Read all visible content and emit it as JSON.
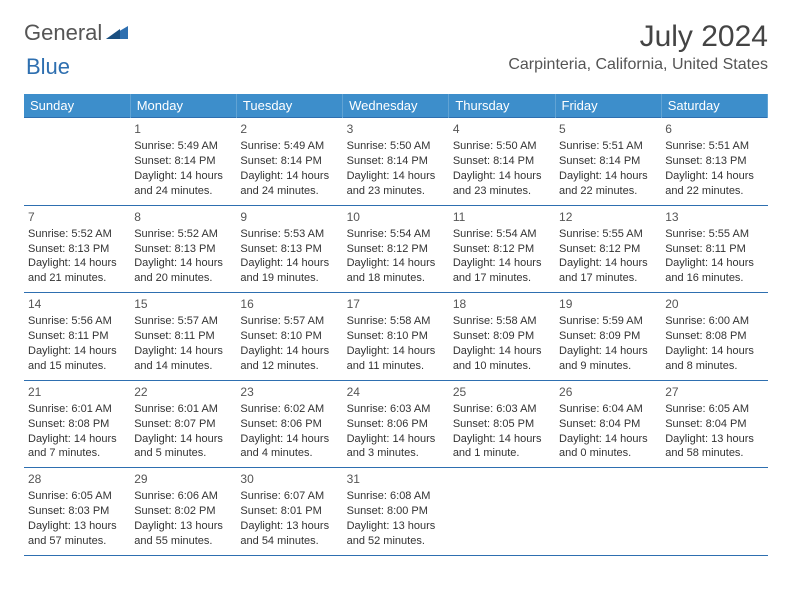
{
  "logo": {
    "general": "General",
    "blue": "Blue"
  },
  "title": "July 2024",
  "location": "Carpinteria, California, United States",
  "colors": {
    "header_bg": "#3d8ecb",
    "border": "#2e6fb0",
    "text": "#333333",
    "title_text": "#444444"
  },
  "weekdays": [
    "Sunday",
    "Monday",
    "Tuesday",
    "Wednesday",
    "Thursday",
    "Friday",
    "Saturday"
  ],
  "weeks": [
    [
      null,
      {
        "n": "1",
        "sunrise": "Sunrise: 5:49 AM",
        "sunset": "Sunset: 8:14 PM",
        "day1": "Daylight: 14 hours",
        "day2": "and 24 minutes."
      },
      {
        "n": "2",
        "sunrise": "Sunrise: 5:49 AM",
        "sunset": "Sunset: 8:14 PM",
        "day1": "Daylight: 14 hours",
        "day2": "and 24 minutes."
      },
      {
        "n": "3",
        "sunrise": "Sunrise: 5:50 AM",
        "sunset": "Sunset: 8:14 PM",
        "day1": "Daylight: 14 hours",
        "day2": "and 23 minutes."
      },
      {
        "n": "4",
        "sunrise": "Sunrise: 5:50 AM",
        "sunset": "Sunset: 8:14 PM",
        "day1": "Daylight: 14 hours",
        "day2": "and 23 minutes."
      },
      {
        "n": "5",
        "sunrise": "Sunrise: 5:51 AM",
        "sunset": "Sunset: 8:14 PM",
        "day1": "Daylight: 14 hours",
        "day2": "and 22 minutes."
      },
      {
        "n": "6",
        "sunrise": "Sunrise: 5:51 AM",
        "sunset": "Sunset: 8:13 PM",
        "day1": "Daylight: 14 hours",
        "day2": "and 22 minutes."
      }
    ],
    [
      {
        "n": "7",
        "sunrise": "Sunrise: 5:52 AM",
        "sunset": "Sunset: 8:13 PM",
        "day1": "Daylight: 14 hours",
        "day2": "and 21 minutes."
      },
      {
        "n": "8",
        "sunrise": "Sunrise: 5:52 AM",
        "sunset": "Sunset: 8:13 PM",
        "day1": "Daylight: 14 hours",
        "day2": "and 20 minutes."
      },
      {
        "n": "9",
        "sunrise": "Sunrise: 5:53 AM",
        "sunset": "Sunset: 8:13 PM",
        "day1": "Daylight: 14 hours",
        "day2": "and 19 minutes."
      },
      {
        "n": "10",
        "sunrise": "Sunrise: 5:54 AM",
        "sunset": "Sunset: 8:12 PM",
        "day1": "Daylight: 14 hours",
        "day2": "and 18 minutes."
      },
      {
        "n": "11",
        "sunrise": "Sunrise: 5:54 AM",
        "sunset": "Sunset: 8:12 PM",
        "day1": "Daylight: 14 hours",
        "day2": "and 17 minutes."
      },
      {
        "n": "12",
        "sunrise": "Sunrise: 5:55 AM",
        "sunset": "Sunset: 8:12 PM",
        "day1": "Daylight: 14 hours",
        "day2": "and 17 minutes."
      },
      {
        "n": "13",
        "sunrise": "Sunrise: 5:55 AM",
        "sunset": "Sunset: 8:11 PM",
        "day1": "Daylight: 14 hours",
        "day2": "and 16 minutes."
      }
    ],
    [
      {
        "n": "14",
        "sunrise": "Sunrise: 5:56 AM",
        "sunset": "Sunset: 8:11 PM",
        "day1": "Daylight: 14 hours",
        "day2": "and 15 minutes."
      },
      {
        "n": "15",
        "sunrise": "Sunrise: 5:57 AM",
        "sunset": "Sunset: 8:11 PM",
        "day1": "Daylight: 14 hours",
        "day2": "and 14 minutes."
      },
      {
        "n": "16",
        "sunrise": "Sunrise: 5:57 AM",
        "sunset": "Sunset: 8:10 PM",
        "day1": "Daylight: 14 hours",
        "day2": "and 12 minutes."
      },
      {
        "n": "17",
        "sunrise": "Sunrise: 5:58 AM",
        "sunset": "Sunset: 8:10 PM",
        "day1": "Daylight: 14 hours",
        "day2": "and 11 minutes."
      },
      {
        "n": "18",
        "sunrise": "Sunrise: 5:58 AM",
        "sunset": "Sunset: 8:09 PM",
        "day1": "Daylight: 14 hours",
        "day2": "and 10 minutes."
      },
      {
        "n": "19",
        "sunrise": "Sunrise: 5:59 AM",
        "sunset": "Sunset: 8:09 PM",
        "day1": "Daylight: 14 hours",
        "day2": "and 9 minutes."
      },
      {
        "n": "20",
        "sunrise": "Sunrise: 6:00 AM",
        "sunset": "Sunset: 8:08 PM",
        "day1": "Daylight: 14 hours",
        "day2": "and 8 minutes."
      }
    ],
    [
      {
        "n": "21",
        "sunrise": "Sunrise: 6:01 AM",
        "sunset": "Sunset: 8:08 PM",
        "day1": "Daylight: 14 hours",
        "day2": "and 7 minutes."
      },
      {
        "n": "22",
        "sunrise": "Sunrise: 6:01 AM",
        "sunset": "Sunset: 8:07 PM",
        "day1": "Daylight: 14 hours",
        "day2": "and 5 minutes."
      },
      {
        "n": "23",
        "sunrise": "Sunrise: 6:02 AM",
        "sunset": "Sunset: 8:06 PM",
        "day1": "Daylight: 14 hours",
        "day2": "and 4 minutes."
      },
      {
        "n": "24",
        "sunrise": "Sunrise: 6:03 AM",
        "sunset": "Sunset: 8:06 PM",
        "day1": "Daylight: 14 hours",
        "day2": "and 3 minutes."
      },
      {
        "n": "25",
        "sunrise": "Sunrise: 6:03 AM",
        "sunset": "Sunset: 8:05 PM",
        "day1": "Daylight: 14 hours",
        "day2": "and 1 minute."
      },
      {
        "n": "26",
        "sunrise": "Sunrise: 6:04 AM",
        "sunset": "Sunset: 8:04 PM",
        "day1": "Daylight: 14 hours",
        "day2": "and 0 minutes."
      },
      {
        "n": "27",
        "sunrise": "Sunrise: 6:05 AM",
        "sunset": "Sunset: 8:04 PM",
        "day1": "Daylight: 13 hours",
        "day2": "and 58 minutes."
      }
    ],
    [
      {
        "n": "28",
        "sunrise": "Sunrise: 6:05 AM",
        "sunset": "Sunset: 8:03 PM",
        "day1": "Daylight: 13 hours",
        "day2": "and 57 minutes."
      },
      {
        "n": "29",
        "sunrise": "Sunrise: 6:06 AM",
        "sunset": "Sunset: 8:02 PM",
        "day1": "Daylight: 13 hours",
        "day2": "and 55 minutes."
      },
      {
        "n": "30",
        "sunrise": "Sunrise: 6:07 AM",
        "sunset": "Sunset: 8:01 PM",
        "day1": "Daylight: 13 hours",
        "day2": "and 54 minutes."
      },
      {
        "n": "31",
        "sunrise": "Sunrise: 6:08 AM",
        "sunset": "Sunset: 8:00 PM",
        "day1": "Daylight: 13 hours",
        "day2": "and 52 minutes."
      },
      null,
      null,
      null
    ]
  ]
}
